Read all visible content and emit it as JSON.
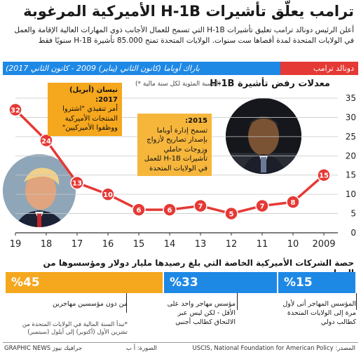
{
  "title": "ترامب يعلّق تأشيرات H-1B الأميركية المرغوبة",
  "intro": "أعلن الرئيس دونالد ترامب تعليق تأشيرات H-1B التي تسمح للعمال الأجانب ذوي المهارات العالية الإقامة والعمل في الولايات المتحدة لمدة أقصاها ست سنوات. الولايات المتحدة تمنح 85.000 تأشيرة H-1B سنويًا فقط",
  "presidents": {
    "obama_label": "باراك أوباما (كانون الثاني (يناير) 2009 - كانون الثاني 2017)",
    "trump_label": "دونالد ترامب"
  },
  "colors": {
    "line": "#e53935",
    "obama_blue": "#1e88e5",
    "trump_red": "#e53935",
    "orange": "#f5a71d",
    "bar_45": "#f5a71d",
    "bar_33": "#1e88e5",
    "bar_15": "#1e88e5"
  },
  "chart_data": {
    "type": "line",
    "title": "معدلات رفض تأشيرة H-1B",
    "subtitle": "(النسبة المئوية لكل سنة مالية *)",
    "x": [
      "2009",
      "10",
      "11",
      "12",
      "13",
      "14",
      "15",
      "16",
      "17",
      "18",
      "19"
    ],
    "series": [
      {
        "values": [
          15,
          8,
          7,
          5,
          7,
          6,
          6,
          10,
          13,
          24,
          32
        ]
      }
    ],
    "data_labels": [
      "15",
      "8",
      "7",
      "5",
      "7",
      "6",
      "6",
      "10",
      "13",
      "24",
      "32"
    ],
    "ylim": [
      0,
      35
    ],
    "yticks": [
      "0",
      "5",
      "10",
      "15",
      "20",
      "25",
      "30",
      "35"
    ],
    "grid": true,
    "x_reversed": true,
    "y_axis_side": "right"
  },
  "callouts": {
    "c2017_heading": "نيسان (أبريل) 2017:",
    "c2017_body": "أمر تنفيذي \"اشتروا المنتجات الأميركية ووظفوا الأميركيين\"",
    "c2015_heading": "2015:",
    "c2015_body": "تسمح إدارة أوباما بإصدار تصاريح لأزواج وزوجات حاملي تأشيرات H-1B للعمل في الولايات المتحدة"
  },
  "section2": {
    "title": "حصة الشركات الأميركية الخاصة التي بلغ رصيدها مليار دولار ومؤسسوها من المهاجرين",
    "bars": [
      {
        "label": "%45"
      },
      {
        "label": "%33"
      },
      {
        "label": "%15"
      }
    ],
    "note_45": "من دون مؤسسين مهاجرين",
    "note_45_footnote": "*تبدأ السنة المالية في الولايات المتحدة من تشرين الأول (أكتوبر) إلى أيلول (سبتمبر)",
    "note_33": "مؤسس مهاجر واحد على الأقل - لكن ليس عبر الالتحاق كطالب أجنبي",
    "note_15": "المؤسس المهاجر أتى لأول مرة إلى الولايات المتحدة كطالب دولي"
  },
  "footer": {
    "source": "المصدر: USCIS, National Foundation for American Policy",
    "date": "الصورة: أ ب",
    "credit": "GRAPHIC NEWS جرافيك نيوز"
  }
}
